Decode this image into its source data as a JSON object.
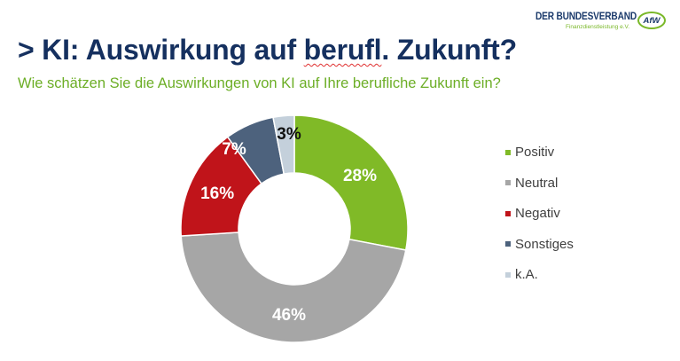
{
  "logo": {
    "main": "DER BUNDESVERBAND",
    "sub": "Finanzdienstleistung e.V.",
    "badge": "AfW"
  },
  "header": {
    "title_prefix": "> KI: Auswirkung auf ",
    "title_spell": "berufl",
    "title_suffix": ". Zukunft?",
    "subtitle": "Wie schätzen Sie die Auswirkungen von KI auf Ihre berufliche Zukunft ein?"
  },
  "colors": {
    "title": "#15305f",
    "subtitle": "#6cae26"
  },
  "chart_data": {
    "type": "pie",
    "subtype": "donut",
    "title": "Wie schätzen Sie die Auswirkungen von KI auf Ihre berufliche Zukunft ein?",
    "categories": [
      "Positiv",
      "Neutral",
      "Negativ",
      "Sonstiges",
      "k.A."
    ],
    "values": [
      28,
      46,
      16,
      7,
      3
    ],
    "labels": [
      "28%",
      "46%",
      "16%",
      "7%",
      "3%"
    ],
    "colors": [
      "#80ba27",
      "#a6a6a6",
      "#c0141a",
      "#4d627d",
      "#c4d0db"
    ],
    "label_colors": [
      "#ffffff",
      "#ffffff",
      "#ffffff",
      "#ffffff",
      "#111111"
    ],
    "unit": "%",
    "start_angle": 0,
    "direction": "clockwise",
    "legend_position": "right"
  },
  "legend": {
    "items": [
      {
        "label": "Positiv",
        "color": "#80ba27"
      },
      {
        "label": "Neutral",
        "color": "#a6a6a6"
      },
      {
        "label": "Negativ",
        "color": "#c0141a"
      },
      {
        "label": "Sonstiges",
        "color": "#4d627d"
      },
      {
        "label": "k.A.",
        "color": "#c4d0db"
      }
    ]
  }
}
